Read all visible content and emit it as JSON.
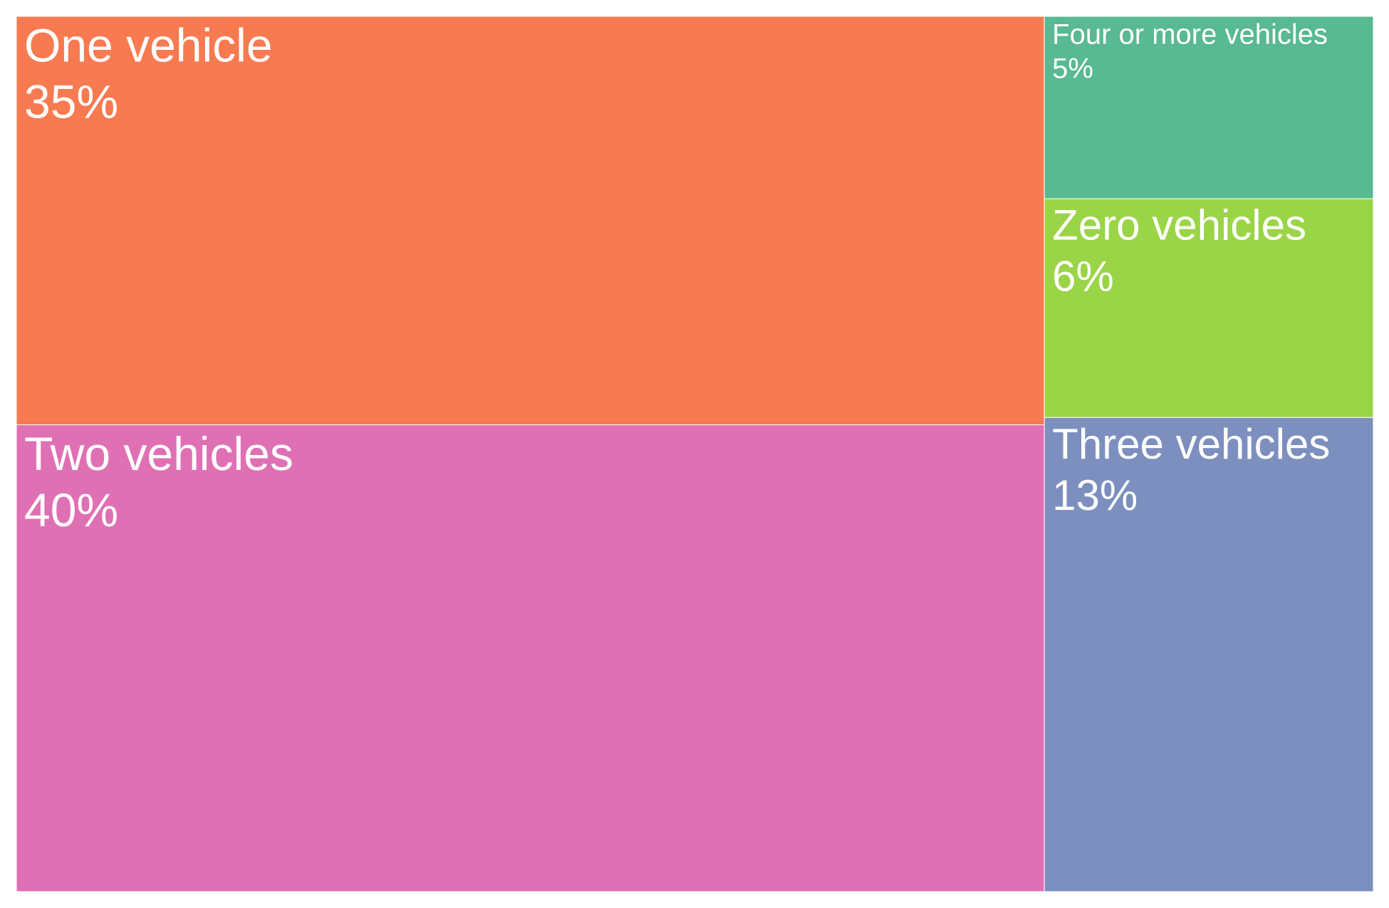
{
  "chart_data": {
    "type": "treemap",
    "title": "",
    "items": [
      {
        "label": "Two vehicles",
        "value": 40,
        "display": "40%",
        "color": "#DF70B4"
      },
      {
        "label": "One vehicle",
        "value": 35,
        "display": "35%",
        "color": "#F87A51"
      },
      {
        "label": "Three vehicles",
        "value": 13,
        "display": "13%",
        "color": "#7C8FBE"
      },
      {
        "label": "Zero vehicles",
        "value": 6,
        "display": "6%",
        "color": "#9AD447"
      },
      {
        "label": "Four or more vehicles",
        "value": 5,
        "display": "5%",
        "color": "#58B992"
      }
    ]
  }
}
